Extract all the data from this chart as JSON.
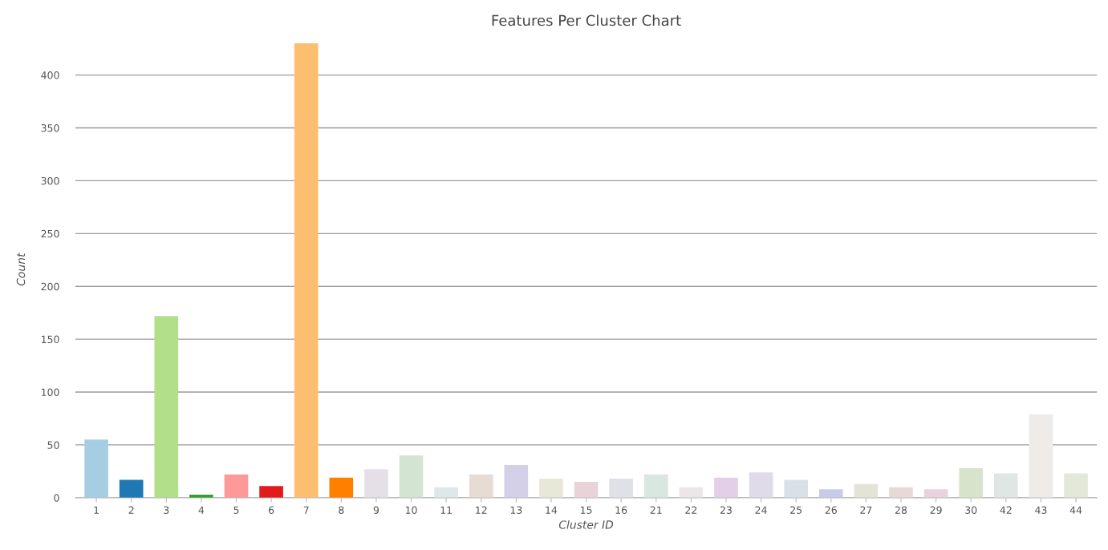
{
  "chart_data": {
    "type": "bar",
    "title": "Features Per Cluster Chart",
    "xlabel": "Cluster ID",
    "ylabel": "Count",
    "categories": [
      "1",
      "2",
      "3",
      "4",
      "5",
      "6",
      "7",
      "8",
      "9",
      "10",
      "11",
      "12",
      "13",
      "14",
      "15",
      "16",
      "21",
      "22",
      "23",
      "24",
      "25",
      "26",
      "27",
      "28",
      "29",
      "30",
      "42",
      "43",
      "44"
    ],
    "values": [
      55,
      17,
      172,
      3,
      22,
      11,
      430,
      19,
      27,
      40,
      10,
      22,
      31,
      18,
      15,
      18,
      22,
      10,
      19,
      24,
      17,
      8,
      13,
      10,
      8,
      28,
      23,
      79,
      23
    ],
    "colors": [
      "#a6cee3",
      "#1f78b4",
      "#b2df8a",
      "#33a02c",
      "#fb9a99",
      "#e31a1c",
      "#fdbf6f",
      "#ff7f00",
      "#e5e0e8",
      "#d3e4d3",
      "#dfe8e8",
      "#e6dcd3",
      "#d3d0e8",
      "#e8e8d8",
      "#e8d3d8",
      "#dfe0e8",
      "#d8e8e0",
      "#ece6e8",
      "#e3d0e8",
      "#e0dbe8",
      "#d8e0e8",
      "#c8cce8",
      "#e3e3d6",
      "#e8d8d8",
      "#e8d3dd",
      "#d8e3cc",
      "#e0e6e3",
      "#eeebe8",
      "#e3e8d8"
    ],
    "ylim": [
      0,
      432
    ],
    "yticks": [
      0,
      50,
      100,
      150,
      200,
      250,
      300,
      350,
      400
    ],
    "grid": "y"
  }
}
